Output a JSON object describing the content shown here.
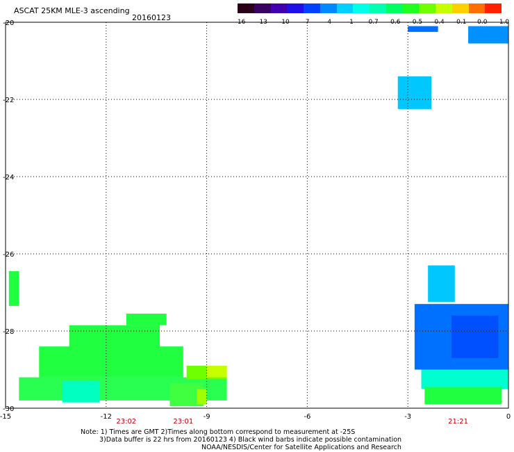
{
  "header": {
    "title": "ASCAT 25KM MLE-3 ascending",
    "date": "20160123"
  },
  "colorbar": {
    "colors": [
      "#2a0018",
      "#3a0060",
      "#4000b0",
      "#2010e8",
      "#0040ff",
      "#0088ff",
      "#00d0ff",
      "#00ffe8",
      "#00ffb0",
      "#00ff60",
      "#20ff20",
      "#70ff00",
      "#c8ff00",
      "#ffd000",
      "#ff7000",
      "#ff2000"
    ],
    "labels": [
      "-16",
      "-13",
      "-10",
      "-7",
      "-4",
      "-1",
      "-0.7",
      "-0.6",
      "-0.5",
      "-0.4",
      "-0.1",
      "0.0",
      "1.0"
    ]
  },
  "map": {
    "lon_range": [
      -15,
      0
    ],
    "lat_range": [
      -30,
      -20
    ],
    "x_ticks": [
      "-15",
      "-12",
      "-9",
      "-6",
      "-3",
      "0"
    ],
    "y_ticks": [
      "-20",
      "-22",
      "-24",
      "-26",
      "-28",
      "-30"
    ],
    "grid": true,
    "time_labels": [
      {
        "lon": -11.4,
        "text": "23:02"
      },
      {
        "lon": -9.7,
        "text": "23:01"
      },
      {
        "lon": -1.5,
        "text": "21:21"
      }
    ],
    "swaths": [
      {
        "lon0": -3.0,
        "lon1": -2.1,
        "lat0": -20.25,
        "lat1": -20.1,
        "color": "#0070ff"
      },
      {
        "lon0": -1.2,
        "lon1": 0.0,
        "lat0": -20.55,
        "lat1": -20.1,
        "color": "#0090ff"
      },
      {
        "lon0": -3.3,
        "lon1": -2.3,
        "lat0": -22.25,
        "lat1": -21.4,
        "color": "#00c8ff"
      },
      {
        "lon0": -14.9,
        "lon1": -14.6,
        "lat0": -27.35,
        "lat1": -26.45,
        "color": "#20ff40"
      },
      {
        "lon0": -14.0,
        "lon1": -9.7,
        "lat0": -29.2,
        "lat1": -28.4,
        "color": "#20ff40"
      },
      {
        "lon0": -13.1,
        "lon1": -10.4,
        "lat0": -28.5,
        "lat1": -27.85,
        "color": "#20ff40"
      },
      {
        "lon0": -11.4,
        "lon1": -10.2,
        "lat0": -27.85,
        "lat1": -27.55,
        "color": "#20ff40"
      },
      {
        "lon0": -14.6,
        "lon1": -8.4,
        "lat0": -29.8,
        "lat1": -29.2,
        "color": "#28ff50"
      },
      {
        "lon0": -9.6,
        "lon1": -8.4,
        "lat0": -29.25,
        "lat1": -28.9,
        "color": "#70ff00"
      },
      {
        "lon0": -9.0,
        "lon1": -8.4,
        "lat0": -29.2,
        "lat1": -28.9,
        "color": "#c8ff00"
      },
      {
        "lon0": -13.3,
        "lon1": -12.2,
        "lat0": -29.85,
        "lat1": -29.3,
        "color": "#00ffc0"
      },
      {
        "lon0": -10.1,
        "lon1": -9.1,
        "lat0": -29.95,
        "lat1": -29.35,
        "color": "#40ff40"
      },
      {
        "lon0": -9.3,
        "lon1": -9.0,
        "lat0": -29.9,
        "lat1": -29.5,
        "color": "#a0ff00"
      },
      {
        "lon0": -2.4,
        "lon1": -1.6,
        "lat0": -27.25,
        "lat1": -26.3,
        "color": "#00c8ff"
      },
      {
        "lon0": -2.8,
        "lon1": 0.0,
        "lat0": -29.0,
        "lat1": -27.3,
        "color": "#0070ff"
      },
      {
        "lon0": -1.7,
        "lon1": -0.3,
        "lat0": -28.7,
        "lat1": -27.6,
        "color": "#0050ff"
      },
      {
        "lon0": -2.6,
        "lon1": 0.0,
        "lat0": -29.5,
        "lat1": -29.0,
        "color": "#00ffd0"
      },
      {
        "lon0": -2.5,
        "lon1": -0.2,
        "lat0": -29.9,
        "lat1": -29.45,
        "color": "#20ff40"
      }
    ]
  },
  "notes": {
    "line1": "Note: 1) Times are GMT 2)Times along bottom correspond to measurement at -25S",
    "line2": "3)Data buffer is 22 hrs from 20160123 4) Black wind barbs indicate possible contamination",
    "line3": "NOAA/NESDIS/Center for Satellite Applications and Research"
  }
}
